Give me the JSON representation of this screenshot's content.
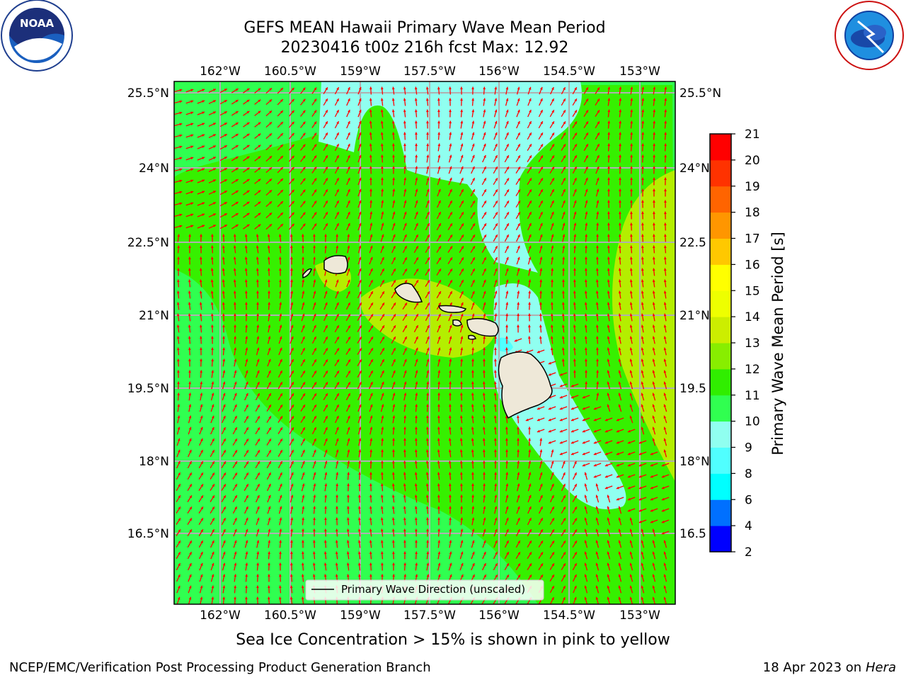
{
  "title": {
    "line1": "GEFS MEAN Hawaii Primary Wave Mean Period",
    "line2": "20230416 t00z 216h fcst   Max: 12.92"
  },
  "logos": {
    "left": {
      "icon": "noaa-logo-icon",
      "text": "NOAA",
      "ring_text": "NATIONAL OCEANIC AND ATMOSPHERIC ADMINISTRATION · U.S. DEPARTMENT OF COMMERCE"
    },
    "right": {
      "icon": "nws-logo-icon",
      "ring_text": "NATIONAL WEATHER SERVICE"
    }
  },
  "map": {
    "lon_ticks": [
      "162°W",
      "160.5°W",
      "159°W",
      "157.5°W",
      "156°W",
      "154.5°W",
      "153°W"
    ],
    "lat_ticks_left": [
      "25.5°N",
      "24°N",
      "22.5°N",
      "21°N",
      "19.5°N",
      "18°N",
      "16.5°N"
    ],
    "lat_ticks_right": [
      "25.5°N",
      "24°N",
      "22.5",
      "21°N",
      "19.5",
      "18°N",
      "16.5"
    ],
    "legend": "Primary Wave Direction (unscaled)",
    "colors": {
      "ocean_green": "#30ff50",
      "light_green": "#36f000",
      "yellow_green": "#b4ee00",
      "cyan": "#90fff0",
      "land": "#eee8d8",
      "arrow": "#ff0000",
      "grid": "#b0b0b0"
    }
  },
  "colorbar": {
    "label": "Primary Wave Mean Period [s]",
    "levels": [
      2,
      4,
      6,
      8,
      9,
      10,
      11,
      12,
      13,
      14,
      15,
      16,
      17,
      18,
      19,
      20,
      21
    ],
    "tick_labels": [
      "2",
      "4",
      "6",
      "8",
      "9",
      "10",
      "11",
      "12",
      "13",
      "14",
      "15",
      "16",
      "17",
      "18",
      "19",
      "20",
      "21"
    ],
    "colors": [
      "#0000ff",
      "#0070ff",
      "#00ffff",
      "#50ffff",
      "#90fff0",
      "#30ff50",
      "#30ee00",
      "#88ee00",
      "#ccee00",
      "#eeff00",
      "#ffff00",
      "#ffc800",
      "#ff9600",
      "#ff6400",
      "#ff3200",
      "#ff0000"
    ]
  },
  "note": "Sea Ice Concentration > 15% is shown in pink to yellow",
  "credit": "NCEP/EMC/Verification Post Processing Product Generation Branch",
  "date": {
    "text": "18 Apr 2023 on",
    "machine": "Hera"
  }
}
